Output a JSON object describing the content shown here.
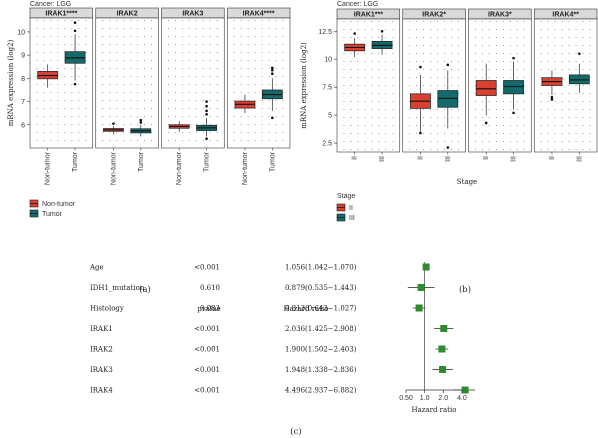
{
  "colors": {
    "red": "#d9402f",
    "teal": "#146a6a",
    "strip_bg": "#d9d9d9",
    "forest": "#2e8b2e"
  },
  "chart_data": [
    {
      "id": "a",
      "type": "boxplot",
      "title": "Cancer: LGG",
      "ylabel": "mRNA expression (log2)",
      "ylim": [
        5.0,
        10.6
      ],
      "yticks": [
        6,
        7,
        8,
        9,
        10
      ],
      "panels": [
        {
          "label": "IRAK1****",
          "boxes": [
            {
              "group": "Non-tumor",
              "min": 7.6,
              "q1": 7.98,
              "median": 8.12,
              "q3": 8.3,
              "max": 8.6,
              "outliers": []
            },
            {
              "group": "Tumor",
              "min": 7.9,
              "q1": 8.65,
              "median": 8.88,
              "q3": 9.15,
              "max": 9.9,
              "outliers": [
                7.75,
                10.05,
                10.4
              ]
            }
          ]
        },
        {
          "label": "IRAK2",
          "boxes": [
            {
              "group": "Non-tumor",
              "min": 5.6,
              "q1": 5.72,
              "median": 5.78,
              "q3": 5.84,
              "max": 5.95,
              "outliers": [
                6.05
              ]
            },
            {
              "group": "Tumor",
              "min": 5.5,
              "q1": 5.65,
              "median": 5.74,
              "q3": 5.83,
              "max": 6.0,
              "outliers": [
                6.1,
                6.2
              ]
            }
          ]
        },
        {
          "label": "IRAK3",
          "boxes": [
            {
              "group": "Non-tumor",
              "min": 5.7,
              "q1": 5.85,
              "median": 5.93,
              "q3": 6.0,
              "max": 6.15,
              "outliers": []
            },
            {
              "group": "Tumor",
              "min": 5.5,
              "q1": 5.75,
              "median": 5.87,
              "q3": 5.98,
              "max": 6.3,
              "outliers": [
                6.45,
                6.6,
                6.8,
                7.0,
                5.4
              ]
            }
          ]
        },
        {
          "label": "IRAK4****",
          "boxes": [
            {
              "group": "Non-tumor",
              "min": 6.5,
              "q1": 6.72,
              "median": 6.88,
              "q3": 7.02,
              "max": 7.3,
              "outliers": []
            },
            {
              "group": "Tumor",
              "min": 6.6,
              "q1": 7.12,
              "median": 7.3,
              "q3": 7.5,
              "max": 8.0,
              "outliers": [
                8.2,
                8.35,
                8.45,
                6.3
              ]
            }
          ]
        }
      ],
      "groups": [
        "Non-tumor",
        "Tumor"
      ],
      "legend": [
        "Non-tumor",
        "Tumor"
      ],
      "caption": "(a)"
    },
    {
      "id": "b",
      "type": "boxplot",
      "title": "Cancer: LGG",
      "ylabel": "mRNA expression (log2)",
      "xlabel": "Stage",
      "ylim": [
        1.7,
        13.6
      ],
      "yticks": [
        2.5,
        5.0,
        7.5,
        10.0,
        12.5
      ],
      "panels": [
        {
          "label": "IRAK1***",
          "boxes": [
            {
              "group": "II",
              "min": 10.2,
              "q1": 10.75,
              "median": 11.05,
              "q3": 11.35,
              "max": 11.9,
              "outliers": [
                12.3
              ]
            },
            {
              "group": "III",
              "min": 10.4,
              "q1": 10.95,
              "median": 11.25,
              "q3": 11.6,
              "max": 12.2,
              "outliers": [
                12.5
              ]
            }
          ]
        },
        {
          "label": "IRAK2*",
          "boxes": [
            {
              "group": "II",
              "min": 3.5,
              "q1": 5.6,
              "median": 6.25,
              "q3": 6.9,
              "max": 8.6,
              "outliers": [
                9.3,
                3.4
              ]
            },
            {
              "group": "III",
              "min": 3.8,
              "q1": 5.7,
              "median": 6.5,
              "q3": 7.2,
              "max": 9.0,
              "outliers": [
                9.5,
                2.1
              ]
            }
          ]
        },
        {
          "label": "IRAK3*",
          "boxes": [
            {
              "group": "II",
              "min": 5.0,
              "q1": 6.75,
              "median": 7.35,
              "q3": 8.1,
              "max": 9.6,
              "outliers": [
                4.3
              ]
            },
            {
              "group": "III",
              "min": 5.5,
              "q1": 6.9,
              "median": 7.55,
              "q3": 8.1,
              "max": 9.8,
              "outliers": [
                10.1,
                5.2
              ]
            }
          ]
        },
        {
          "label": "IRAK4**",
          "boxes": [
            {
              "group": "II",
              "min": 6.8,
              "q1": 7.65,
              "median": 8.0,
              "q3": 8.35,
              "max": 9.0,
              "outliers": [
                6.6,
                6.4
              ]
            },
            {
              "group": "III",
              "min": 7.0,
              "q1": 7.8,
              "median": 8.15,
              "q3": 8.6,
              "max": 9.6,
              "outliers": [
                10.5
              ]
            }
          ]
        }
      ],
      "groups": [
        "II",
        "III"
      ],
      "legend_title": "Stage",
      "legend": [
        "II",
        "III"
      ],
      "caption": "(b)"
    },
    {
      "id": "c",
      "type": "forest",
      "col_pvalue": "pvalue",
      "col_hr": "Hazard ratio",
      "xlabel": "Hazard ratio",
      "xscale": "log",
      "xlim": [
        0.4,
        6.5
      ],
      "xticks": [
        0.5,
        1.0,
        2.0,
        4.0
      ],
      "xtick_labels": [
        "0.50",
        "1.0",
        "2.0",
        "4.0"
      ],
      "reference": 1.0,
      "rows": [
        {
          "name": "Age",
          "pvalue": "<0.001",
          "hr_text": "1.056(1.042−1.070)",
          "hr": 1.056,
          "lo": 1.042,
          "hi": 1.07
        },
        {
          "name": "IDH1_mutation",
          "pvalue": "0.610",
          "hr_text": "0.879(0.535−1.443)",
          "hr": 0.879,
          "lo": 0.535,
          "hi": 1.443
        },
        {
          "name": "Histology",
          "pvalue": "0.083",
          "hr_text": "0.813(0.643−1.027)",
          "hr": 0.813,
          "lo": 0.643,
          "hi": 1.027
        },
        {
          "name": "IRAK1",
          "pvalue": "<0.001",
          "hr_text": "2.036(1.425−2.908)",
          "hr": 2.036,
          "lo": 1.425,
          "hi": 2.908
        },
        {
          "name": "IRAK2",
          "pvalue": "<0.001",
          "hr_text": "1.900(1.502−2.403)",
          "hr": 1.9,
          "lo": 1.502,
          "hi": 2.403
        },
        {
          "name": "IRAK3",
          "pvalue": "<0.001",
          "hr_text": "1.948(1.338−2.836)",
          "hr": 1.948,
          "lo": 1.338,
          "hi": 2.836
        },
        {
          "name": "IRAK4",
          "pvalue": "<0.001",
          "hr_text": "4.496(2.937−6.882)",
          "hr": 4.496,
          "lo": 2.937,
          "hi": 6.882
        }
      ],
      "caption": "(c)"
    }
  ]
}
